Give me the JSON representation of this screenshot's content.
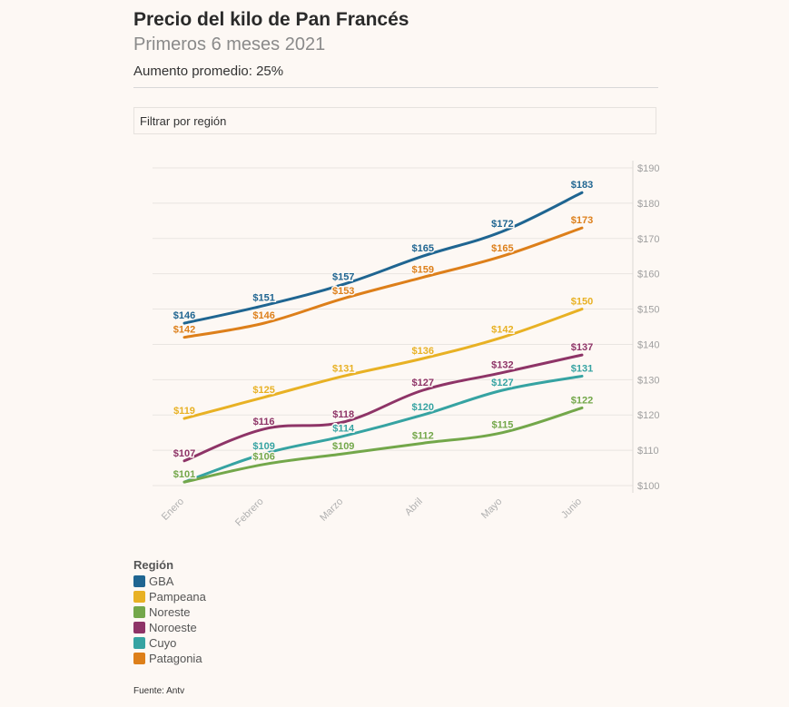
{
  "header": {
    "title": "Precio del kilo de Pan Francés",
    "subtitle": "Primeros 6 meses 2021",
    "note": "Aumento promedio: 25%"
  },
  "filter": {
    "label": "Filtrar por región"
  },
  "legend": {
    "title": "Región",
    "items": [
      {
        "label": "GBA",
        "color": "#1f6591"
      },
      {
        "label": "Pampeana",
        "color": "#e8b124"
      },
      {
        "label": "Noreste",
        "color": "#73a74a"
      },
      {
        "label": "Noroeste",
        "color": "#8e3467"
      },
      {
        "label": "Cuyo",
        "color": "#36a3a2"
      },
      {
        "label": "Patagonia",
        "color": "#dd7f1a"
      }
    ]
  },
  "source": "Fuente: Antv",
  "chart_data": {
    "type": "line",
    "categories": [
      "Enero",
      "Febrero",
      "Marzo",
      "Abril",
      "Mayo",
      "Junio"
    ],
    "ylim": [
      100,
      190
    ],
    "yticks": [
      "$100",
      "$110",
      "$120",
      "$130",
      "$140",
      "$150",
      "$160",
      "$170",
      "$180",
      "$190"
    ],
    "ytick_values": [
      100,
      110,
      120,
      130,
      140,
      150,
      160,
      170,
      180,
      190
    ],
    "grid": true,
    "y_axis_position": "right",
    "series": [
      {
        "name": "GBA",
        "color": "#1f6591",
        "values": [
          146,
          151,
          157,
          165,
          172,
          183
        ],
        "labels": [
          "$146",
          "$151",
          "$157",
          "$165",
          "$172",
          "$183"
        ]
      },
      {
        "name": "Patagonia",
        "color": "#dd7f1a",
        "values": [
          142,
          146,
          153,
          159,
          165,
          173
        ],
        "labels": [
          "$142",
          "$146",
          "$153",
          "$159",
          "$165",
          "$173"
        ]
      },
      {
        "name": "Pampeana",
        "color": "#e8b124",
        "values": [
          119,
          125,
          131,
          136,
          142,
          150
        ],
        "labels": [
          "$119",
          "$125",
          "$131",
          "$136",
          "$142",
          "$150"
        ]
      },
      {
        "name": "Noroeste",
        "color": "#8e3467",
        "values": [
          107,
          116,
          118,
          127,
          132,
          137
        ],
        "labels": [
          "$107",
          "$116",
          "$118",
          "$127",
          "$132",
          "$137"
        ]
      },
      {
        "name": "Cuyo",
        "color": "#36a3a2",
        "values": [
          101,
          109,
          114,
          120,
          127,
          131
        ],
        "labels": [
          "$101",
          "$109",
          "$114",
          "$120",
          "$127",
          "$131"
        ]
      },
      {
        "name": "Noreste",
        "color": "#73a74a",
        "values": [
          101,
          106,
          109,
          112,
          115,
          122
        ],
        "labels": [
          "$101",
          "$106",
          "$109",
          "$112",
          "$115",
          "$122"
        ]
      }
    ]
  }
}
